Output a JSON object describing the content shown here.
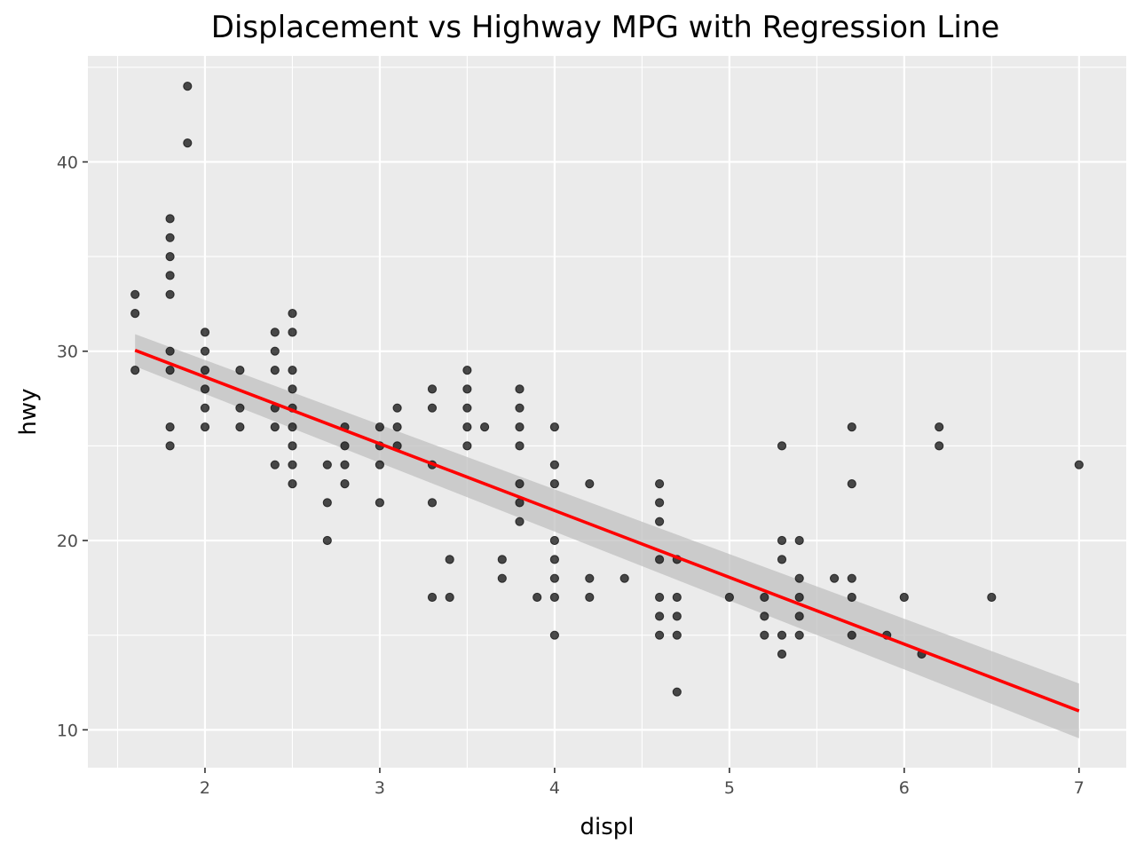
{
  "chart_data": {
    "type": "scatter",
    "title": "Displacement vs Highway MPG with Regression Line",
    "xlabel": "displ",
    "ylabel": "hwy",
    "xlim": [
      1.33,
      7.27
    ],
    "ylim": [
      8.0,
      45.6
    ],
    "x_ticks": [
      2,
      3,
      4,
      5,
      6,
      7
    ],
    "y_ticks": [
      10,
      20,
      30,
      40
    ],
    "grid": true,
    "legend": "none",
    "colors": {
      "panel": "#EBEBEB",
      "grid": "#FFFFFF",
      "points": "#000000",
      "regression_line": "#FF0000",
      "confidence_band": "#BEBEBE"
    },
    "series": [
      {
        "values": [
          [
            1.6,
            33
          ],
          [
            1.6,
            32
          ],
          [
            1.6,
            29
          ],
          [
            1.8,
            37
          ],
          [
            1.8,
            36
          ],
          [
            1.8,
            35
          ],
          [
            1.8,
            34
          ],
          [
            1.8,
            33
          ],
          [
            1.8,
            30
          ],
          [
            1.8,
            29
          ],
          [
            1.8,
            26
          ],
          [
            1.8,
            25
          ],
          [
            1.9,
            44
          ],
          [
            1.9,
            41
          ],
          [
            2.0,
            31
          ],
          [
            2.0,
            30
          ],
          [
            2.0,
            29
          ],
          [
            2.0,
            28
          ],
          [
            2.0,
            27
          ],
          [
            2.0,
            26
          ],
          [
            2.2,
            29
          ],
          [
            2.2,
            27
          ],
          [
            2.2,
            26
          ],
          [
            2.4,
            31
          ],
          [
            2.4,
            30
          ],
          [
            2.4,
            29
          ],
          [
            2.4,
            27
          ],
          [
            2.4,
            26
          ],
          [
            2.4,
            24
          ],
          [
            2.5,
            32
          ],
          [
            2.5,
            31
          ],
          [
            2.5,
            29
          ],
          [
            2.5,
            28
          ],
          [
            2.5,
            27
          ],
          [
            2.5,
            26
          ],
          [
            2.5,
            25
          ],
          [
            2.5,
            24
          ],
          [
            2.5,
            23
          ],
          [
            2.7,
            24
          ],
          [
            2.7,
            22
          ],
          [
            2.7,
            20
          ],
          [
            2.8,
            26
          ],
          [
            2.8,
            25
          ],
          [
            2.8,
            24
          ],
          [
            2.8,
            23
          ],
          [
            3.0,
            26
          ],
          [
            3.0,
            25
          ],
          [
            3.0,
            24
          ],
          [
            3.0,
            22
          ],
          [
            3.1,
            27
          ],
          [
            3.1,
            26
          ],
          [
            3.1,
            25
          ],
          [
            3.3,
            28
          ],
          [
            3.3,
            27
          ],
          [
            3.3,
            24
          ],
          [
            3.3,
            22
          ],
          [
            3.3,
            17
          ],
          [
            3.4,
            19
          ],
          [
            3.4,
            17
          ],
          [
            3.5,
            29
          ],
          [
            3.5,
            28
          ],
          [
            3.5,
            27
          ],
          [
            3.5,
            26
          ],
          [
            3.5,
            25
          ],
          [
            3.6,
            26
          ],
          [
            3.7,
            19
          ],
          [
            3.7,
            18
          ],
          [
            3.8,
            28
          ],
          [
            3.8,
            27
          ],
          [
            3.8,
            26
          ],
          [
            3.8,
            25
          ],
          [
            3.8,
            23
          ],
          [
            3.8,
            22
          ],
          [
            3.8,
            21
          ],
          [
            3.9,
            17
          ],
          [
            4.0,
            26
          ],
          [
            4.0,
            24
          ],
          [
            4.0,
            23
          ],
          [
            4.0,
            20
          ],
          [
            4.0,
            19
          ],
          [
            4.0,
            18
          ],
          [
            4.0,
            17
          ],
          [
            4.0,
            15
          ],
          [
            4.2,
            23
          ],
          [
            4.2,
            18
          ],
          [
            4.2,
            17
          ],
          [
            4.4,
            18
          ],
          [
            4.6,
            23
          ],
          [
            4.6,
            22
          ],
          [
            4.6,
            21
          ],
          [
            4.6,
            19
          ],
          [
            4.6,
            17
          ],
          [
            4.6,
            16
          ],
          [
            4.6,
            15
          ],
          [
            4.7,
            19
          ],
          [
            4.7,
            17
          ],
          [
            4.7,
            16
          ],
          [
            4.7,
            15
          ],
          [
            4.7,
            12
          ],
          [
            5.0,
            17
          ],
          [
            5.2,
            17
          ],
          [
            5.2,
            16
          ],
          [
            5.2,
            15
          ],
          [
            5.3,
            25
          ],
          [
            5.3,
            20
          ],
          [
            5.3,
            19
          ],
          [
            5.3,
            15
          ],
          [
            5.3,
            14
          ],
          [
            5.4,
            20
          ],
          [
            5.4,
            18
          ],
          [
            5.4,
            17
          ],
          [
            5.4,
            16
          ],
          [
            5.4,
            15
          ],
          [
            5.6,
            18
          ],
          [
            5.7,
            26
          ],
          [
            5.7,
            23
          ],
          [
            5.7,
            18
          ],
          [
            5.7,
            17
          ],
          [
            5.7,
            15
          ],
          [
            5.9,
            15
          ],
          [
            6.0,
            17
          ],
          [
            6.1,
            14
          ],
          [
            6.2,
            26
          ],
          [
            6.2,
            25
          ],
          [
            6.5,
            17
          ],
          [
            7.0,
            24
          ]
        ]
      }
    ],
    "regression": {
      "x": [
        1.6,
        7.0
      ],
      "y": [
        30.05,
        11.0
      ],
      "ci_lower": [
        29.2,
        9.55
      ],
      "ci_upper": [
        30.9,
        12.45
      ]
    }
  }
}
